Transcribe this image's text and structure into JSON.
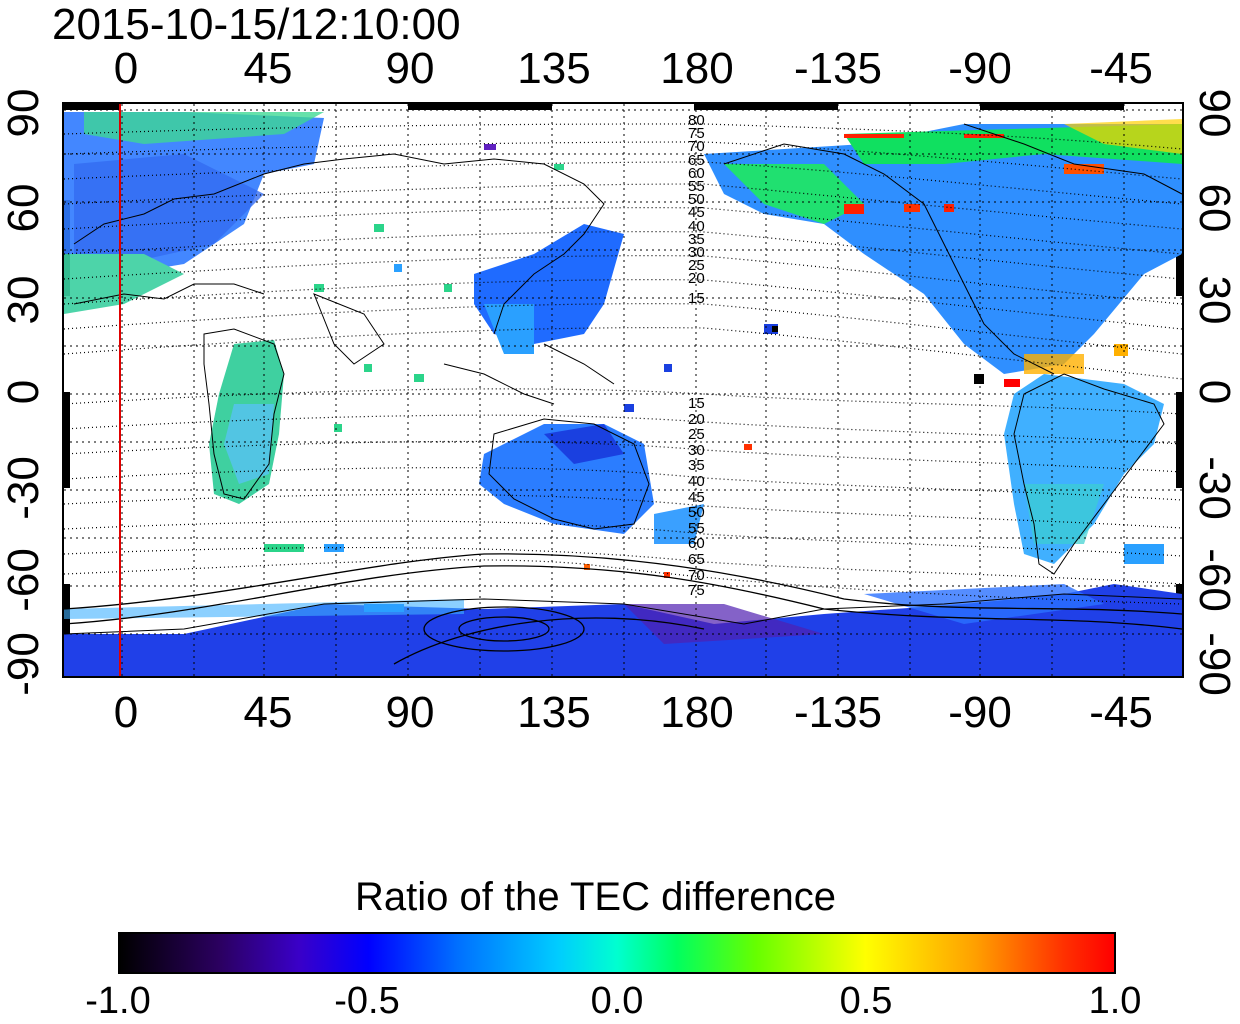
{
  "title": "2015-10-15/12:10:00",
  "colorbar": {
    "title": "Ratio of the TEC difference",
    "labels": [
      "-1.0",
      "-0.5",
      "0.0",
      "0.5",
      "1.0"
    ],
    "range": [
      -1.0,
      1.0
    ]
  },
  "map": {
    "projection": "cylindrical",
    "lon_ticks": [
      "0",
      "45",
      "90",
      "135",
      "180",
      "-135",
      "-90",
      "-45"
    ],
    "lat_ticks_left": [
      "90",
      "60",
      "30",
      "0",
      "-30",
      "-60",
      "-90"
    ],
    "lat_ticks_right": [
      "90",
      "60",
      "30",
      "0",
      "-30",
      "-60",
      "-90"
    ],
    "contour_labels_north": [
      "80",
      "75",
      "70",
      "65",
      "60",
      "55",
      "50",
      "45",
      "40",
      "35",
      "30",
      "25",
      "20",
      "15"
    ],
    "contour_labels_south": [
      "15",
      "20",
      "25",
      "30",
      "35",
      "40",
      "45",
      "50",
      "55",
      "60",
      "65",
      "70",
      "75"
    ],
    "marker_line_color": "#e00000",
    "marker_longitude": -1,
    "grid": "dotted"
  }
}
